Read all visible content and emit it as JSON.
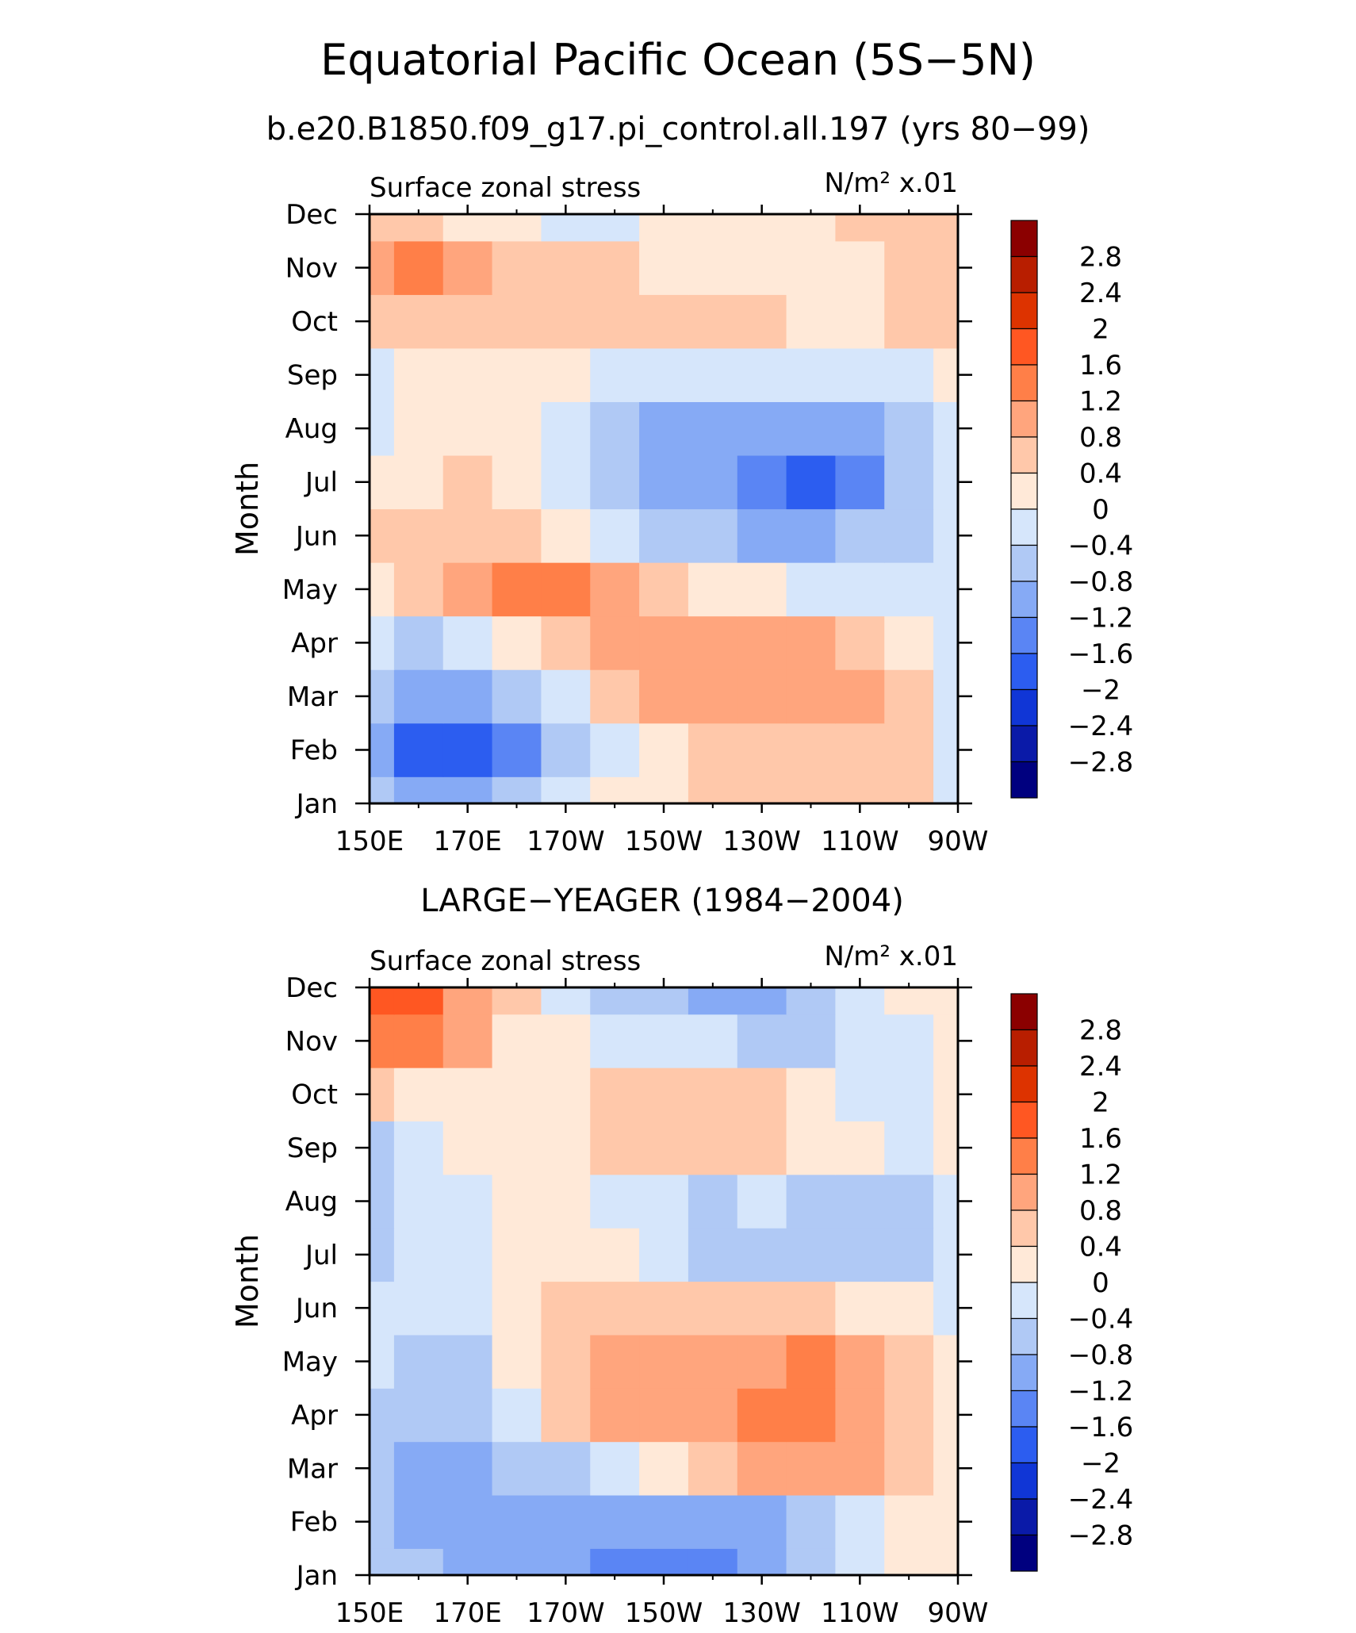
{
  "figure": {
    "title": "Equatorial Pacific Ocean (5S−5N)",
    "case_title": "b.e20.B1850.f09_g17.pi_control.all.197 (yrs 80−99)",
    "obs_title": "LARGE−YEAGER (1984−2004)"
  },
  "colorbar": {
    "levels": [
      -2.8,
      -2.4,
      -2,
      -1.6,
      -1.2,
      -0.8,
      -0.4,
      0,
      0.4,
      0.8,
      1.2,
      1.6,
      2,
      2.4,
      2.8
    ],
    "labels": [
      "2.8",
      "2.4",
      "2",
      "1.6",
      "1.2",
      "0.8",
      "0.4",
      "0",
      "−0.4",
      "−0.8",
      "−1.2",
      "−1.6",
      "−2",
      "−2.4",
      "−2.8"
    ],
    "colors": [
      "#8b0000",
      "#b81e00",
      "#dd3300",
      "#ff5722",
      "#ff7f48",
      "#ffa57d",
      "#ffc8aa",
      "#ffe9d8",
      "#d6e6fb",
      "#b0c9f5",
      "#86aaf5",
      "#5a85f4",
      "#2c5df0",
      "#1036d6",
      "#0a1aa8",
      "#00007f"
    ]
  },
  "chart_data": [
    {
      "type": "heatmap",
      "title": "b.e20.B1850.f09_g17.pi_control.all.197 (yrs 80−99)",
      "left_label": "Surface zonal stress",
      "units_label": "N/m² x.01",
      "ylabel": "Month",
      "xlabel": "",
      "x_ticks": [
        "150E",
        "170E",
        "170W",
        "150W",
        "130W",
        "110W",
        "90W"
      ],
      "y_ticks": [
        "Jan",
        "Feb",
        "Mar",
        "Apr",
        "May",
        "Jun",
        "Jul",
        "Aug",
        "Sep",
        "Oct",
        "Nov",
        "Dec"
      ],
      "xlim": [
        "150E",
        "90W"
      ],
      "x": [
        150,
        160,
        170,
        180,
        190,
        200,
        210,
        220,
        230,
        240,
        250,
        260,
        270
      ],
      "y": [
        "Jan",
        "Feb",
        "Mar",
        "Apr",
        "May",
        "Jun",
        "Jul",
        "Aug",
        "Sep",
        "Oct",
        "Nov",
        "Dec"
      ],
      "values": [
        [
          -0.6,
          -1.0,
          -1.0,
          -0.6,
          -0.3,
          0.0,
          0.2,
          0.4,
          0.6,
          0.4,
          0.4,
          0.4,
          -0.2
        ],
        [
          -1.2,
          -1.7,
          -1.8,
          -1.4,
          -0.8,
          -0.3,
          0.2,
          0.5,
          0.6,
          0.6,
          0.6,
          0.5,
          -0.2
        ],
        [
          -0.8,
          -1.2,
          -1.2,
          -0.8,
          -0.1,
          0.4,
          0.8,
          0.9,
          1.0,
          1.0,
          0.9,
          0.5,
          -0.2
        ],
        [
          -0.4,
          -0.5,
          -0.4,
          0.1,
          0.6,
          0.9,
          0.9,
          0.8,
          0.9,
          0.9,
          0.7,
          0.3,
          -0.2
        ],
        [
          0.3,
          0.4,
          0.8,
          1.2,
          1.4,
          1.0,
          0.6,
          0.2,
          0.0,
          -0.1,
          -0.2,
          -0.1,
          -0.2
        ],
        [
          0.4,
          0.5,
          0.5,
          0.4,
          0.1,
          -0.3,
          -0.6,
          -0.8,
          -0.9,
          -0.9,
          -0.8,
          -0.5,
          -0.1
        ],
        [
          0.0,
          0.2,
          0.5,
          0.3,
          -0.2,
          -0.7,
          -1.0,
          -1.2,
          -1.5,
          -1.7,
          -1.5,
          -0.8,
          -0.2
        ],
        [
          -0.2,
          0.0,
          0.1,
          0.2,
          -0.3,
          -0.8,
          -1.1,
          -1.1,
          -1.0,
          -1.0,
          -0.9,
          -0.6,
          -0.1
        ],
        [
          -0.3,
          0.2,
          0.2,
          0.2,
          0.1,
          -0.2,
          -0.3,
          -0.3,
          -0.3,
          -0.3,
          -0.2,
          -0.1,
          0.2
        ],
        [
          0.5,
          0.6,
          0.6,
          0.6,
          0.5,
          0.5,
          0.5,
          0.5,
          0.5,
          0.3,
          0.2,
          0.5,
          0.5
        ],
        [
          1.0,
          1.5,
          1.0,
          0.7,
          0.5,
          0.4,
          0.3,
          0.2,
          0.1,
          0.1,
          0.2,
          0.5,
          0.6
        ],
        [
          0.4,
          0.5,
          0.3,
          0.0,
          -0.2,
          -0.1,
          0.0,
          0.1,
          0.1,
          0.2,
          0.4,
          0.5,
          0.5
        ]
      ]
    },
    {
      "type": "heatmap",
      "title": "LARGE−YEAGER (1984−2004)",
      "left_label": "Surface zonal stress",
      "units_label": "N/m² x.01",
      "ylabel": "Month",
      "xlabel": "",
      "x_ticks": [
        "150E",
        "170E",
        "170W",
        "150W",
        "130W",
        "110W",
        "90W"
      ],
      "y_ticks": [
        "Jan",
        "Feb",
        "Mar",
        "Apr",
        "May",
        "Jun",
        "Jul",
        "Aug",
        "Sep",
        "Oct",
        "Nov",
        "Dec"
      ],
      "xlim": [
        "150E",
        "90W"
      ],
      "x": [
        150,
        160,
        170,
        180,
        190,
        200,
        210,
        220,
        230,
        240,
        250,
        260,
        270
      ],
      "y": [
        "Jan",
        "Feb",
        "Mar",
        "Apr",
        "May",
        "Jun",
        "Jul",
        "Aug",
        "Sep",
        "Oct",
        "Nov",
        "Dec"
      ],
      "values": [
        [
          -0.5,
          -0.8,
          -0.9,
          -1.0,
          -1.2,
          -1.6,
          -1.4,
          -1.6,
          -1.2,
          -0.6,
          -0.2,
          0.1,
          0.2
        ],
        [
          -0.7,
          -1.0,
          -1.0,
          -0.9,
          -1.2,
          -1.1,
          -1.0,
          -1.0,
          -0.9,
          -0.5,
          -0.1,
          0.1,
          0.2
        ],
        [
          -0.6,
          -1.0,
          -1.1,
          -0.8,
          -0.5,
          -0.3,
          0.2,
          0.5,
          0.8,
          0.9,
          0.8,
          0.4,
          0.2
        ],
        [
          -0.5,
          -0.7,
          -0.8,
          -0.3,
          0.4,
          0.8,
          0.9,
          1.0,
          1.3,
          1.4,
          1.1,
          0.6,
          0.1
        ],
        [
          -0.3,
          -0.5,
          -0.5,
          0.0,
          0.5,
          0.8,
          0.9,
          1.0,
          1.1,
          1.2,
          0.9,
          0.4,
          0.0
        ],
        [
          -0.3,
          -0.3,
          -0.2,
          0.1,
          0.4,
          0.5,
          0.5,
          0.5,
          0.5,
          0.4,
          0.2,
          0.0,
          -0.1
        ],
        [
          -0.5,
          -0.3,
          -0.2,
          0.1,
          0.2,
          0.0,
          -0.3,
          -0.6,
          -0.5,
          -0.6,
          -0.8,
          -0.6,
          -0.2
        ],
        [
          -0.7,
          -0.4,
          -0.1,
          0.1,
          0.0,
          -0.2,
          -0.3,
          -0.5,
          -0.2,
          -0.5,
          -0.8,
          -0.6,
          -0.2
        ],
        [
          -0.5,
          -0.3,
          0.0,
          0.1,
          0.2,
          0.4,
          0.4,
          0.5,
          0.6,
          0.2,
          0.0,
          -0.2,
          0.0
        ],
        [
          0.4,
          0.3,
          0.3,
          0.1,
          0.2,
          0.5,
          0.5,
          0.5,
          0.4,
          0.1,
          -0.2,
          -0.3,
          0.1
        ],
        [
          1.3,
          1.3,
          0.8,
          0.3,
          0.0,
          -0.2,
          -0.3,
          -0.4,
          -0.6,
          -0.8,
          -0.4,
          -0.1,
          0.2
        ],
        [
          1.6,
          1.8,
          1.0,
          0.4,
          -0.2,
          -0.6,
          -0.8,
          -1.0,
          -1.2,
          -0.8,
          -0.3,
          0.0,
          0.2
        ]
      ]
    }
  ]
}
